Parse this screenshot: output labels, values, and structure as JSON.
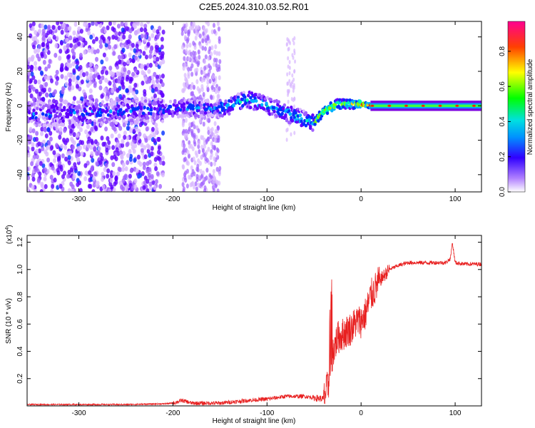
{
  "title": "C2E5.2024.310.03.52.R01",
  "chart_data": [
    {
      "type": "heatmap",
      "xlabel": "Height of straight line (km)",
      "ylabel": "Frequency (Hz)",
      "xlim": [
        -355,
        128
      ],
      "ylim": [
        -50,
        49
      ],
      "xticks": [
        -300,
        -200,
        -100,
        0,
        100
      ],
      "xtick_labels": [
        "-300",
        "-200",
        "-100",
        "0",
        "100"
      ],
      "yticks": [
        -40,
        -20,
        0,
        20,
        40
      ],
      "ytick_labels": [
        "-40",
        "-20",
        "0",
        "20",
        "40"
      ],
      "colorbar": {
        "label": "Normalized spectral amplitude",
        "range": [
          0,
          0.97
        ],
        "ticks": [
          0.0,
          0.2,
          0.4,
          0.6,
          0.8
        ],
        "tick_labels": [
          "0.0",
          "0.2",
          "0.4",
          "0.6",
          "0.8"
        ],
        "colormap": [
          "#ffffff",
          "#7b00e0",
          "#0000ff",
          "#00c8ff",
          "#00ff00",
          "#ffff00",
          "#ff0000",
          "#ff0090"
        ]
      },
      "ridge": {
        "x": [
          -355,
          -300,
          -250,
          -210,
          -180,
          -150,
          -120,
          -100,
          -80,
          -60,
          -50,
          -40,
          -25,
          -10,
          0,
          10,
          50,
          100,
          128
        ],
        "y": [
          -5,
          -4,
          -3,
          -2,
          -1,
          -2,
          4,
          0,
          -4,
          -8,
          -10,
          -3,
          1,
          1,
          1,
          0,
          0,
          0,
          0
        ]
      },
      "regions": [
        {
          "name": "scattered noise",
          "x": [
            -355,
            -210
          ],
          "intensity": 0.2
        },
        {
          "name": "noise band",
          "x": [
            -210,
            -150
          ],
          "intensity": 0.15
        },
        {
          "name": "signal onset",
          "x": [
            -150,
            -50
          ],
          "intensity": 0.45
        },
        {
          "name": "strong tone",
          "x": [
            -50,
            128
          ],
          "intensity": 0.9
        }
      ]
    },
    {
      "type": "line",
      "xlabel": "Height of straight line (km)",
      "ylabel": "SNR (10 * v/v)",
      "scale_label": "(x10",
      "scale_exp": "4",
      "xlim": [
        -355,
        128
      ],
      "ylim": [
        0,
        1.25
      ],
      "xticks": [
        -300,
        -200,
        -100,
        0,
        100
      ],
      "xtick_labels": [
        "-300",
        "-200",
        "-100",
        "0",
        "100"
      ],
      "yticks": [
        0.2,
        0.4,
        0.6,
        0.8,
        1.0,
        1.2
      ],
      "ytick_labels": [
        "0.2",
        "0.4",
        "0.6",
        "0.8",
        "1.0",
        "1.2"
      ],
      "color": "#e82020",
      "series": [
        {
          "x": [
            -355,
            -300,
            -250,
            -210,
            -200,
            -190,
            -180,
            -150,
            -120,
            -100,
            -80,
            -60,
            -50,
            -40,
            -35,
            -30,
            -25,
            -20,
            -15,
            -10,
            -5,
            0,
            5,
            10,
            20,
            30,
            40,
            50,
            60,
            70,
            80,
            90,
            95,
            97,
            100,
            110,
            120,
            128
          ],
          "y": [
            0.01,
            0.01,
            0.01,
            0.015,
            0.02,
            0.04,
            0.02,
            0.02,
            0.04,
            0.05,
            0.07,
            0.07,
            0.06,
            0.05,
            0.15,
            0.4,
            0.5,
            0.52,
            0.55,
            0.57,
            0.62,
            0.62,
            0.68,
            0.8,
            0.92,
            1.0,
            1.03,
            1.05,
            1.05,
            1.05,
            1.05,
            1.05,
            1.08,
            1.2,
            1.05,
            1.04,
            1.04,
            1.04
          ]
        }
      ]
    }
  ]
}
